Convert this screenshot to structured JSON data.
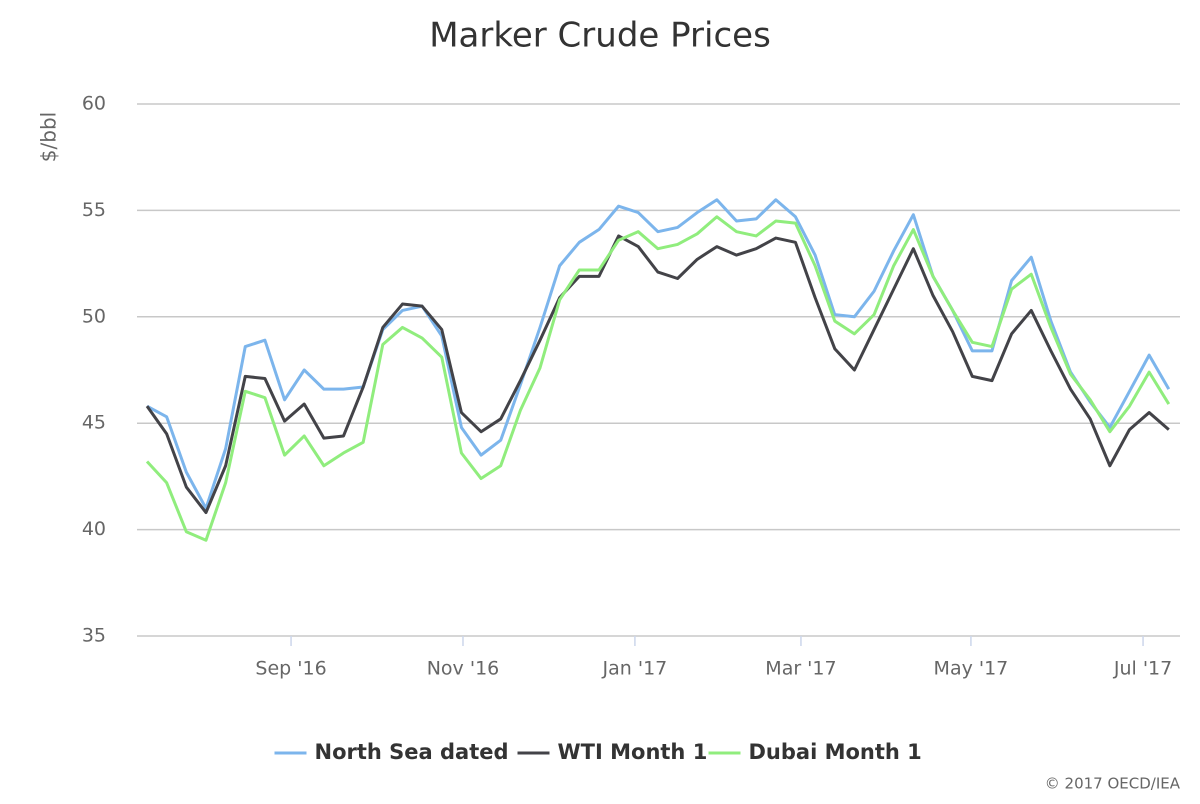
{
  "chart_data": {
    "type": "line",
    "title": "Marker Crude Prices",
    "y_label": "$/bbl",
    "credit": "© 2017 OECD/IEA",
    "legend": "bottom",
    "grid": true,
    "x": [
      0,
      1,
      2,
      3,
      4,
      5,
      6,
      7,
      8,
      9,
      10,
      11,
      12,
      13,
      14,
      15,
      16,
      17,
      18,
      19,
      20,
      21,
      22,
      23,
      24,
      25,
      26,
      27,
      28,
      29,
      30,
      31,
      32,
      33,
      34,
      35,
      36,
      37,
      38,
      39,
      40,
      41,
      42,
      43,
      44,
      45,
      46,
      47,
      48,
      49,
      50,
      51,
      52
    ],
    "xlim": [
      -0.51,
      52.57
    ],
    "xticks": [
      {
        "value": 7.33,
        "label": "Sep '16"
      },
      {
        "value": 16.08,
        "label": "Nov '16"
      },
      {
        "value": 24.83,
        "label": "Jan '17"
      },
      {
        "value": 33.28,
        "label": "Mar '17"
      },
      {
        "value": 41.93,
        "label": "May '17"
      },
      {
        "value": 50.69,
        "label": "Jul '17"
      }
    ],
    "ylim": [
      35,
      60
    ],
    "yticks": [
      35,
      40,
      45,
      50,
      55,
      60
    ],
    "series": [
      {
        "name": "North Sea dated",
        "color": "#7cb5ec",
        "values": [
          45.8,
          45.3,
          42.7,
          41.0,
          43.8,
          48.6,
          48.9,
          46.1,
          47.5,
          46.6,
          46.6,
          46.7,
          49.4,
          50.3,
          50.5,
          49.1,
          44.8,
          43.5,
          44.2,
          46.8,
          49.5,
          52.4,
          53.5,
          54.1,
          55.2,
          54.9,
          54.0,
          54.2,
          54.9,
          55.5,
          54.5,
          54.6,
          55.5,
          54.7,
          52.9,
          50.1,
          50.0,
          51.2,
          53.1,
          54.8,
          51.9,
          50.3,
          48.4,
          48.4,
          51.7,
          52.8,
          49.8,
          47.4,
          46.0,
          44.8,
          46.5,
          48.2,
          46.6
        ]
      },
      {
        "name": "WTI Month 1",
        "color": "#434348",
        "values": [
          45.8,
          44.5,
          42.0,
          40.8,
          43.0,
          47.2,
          47.1,
          45.1,
          45.9,
          44.3,
          44.4,
          46.7,
          49.5,
          50.6,
          50.5,
          49.4,
          45.5,
          44.6,
          45.2,
          47.0,
          48.9,
          50.9,
          51.9,
          51.9,
          53.8,
          53.3,
          52.1,
          51.8,
          52.7,
          53.3,
          52.9,
          53.2,
          53.7,
          53.5,
          50.9,
          48.5,
          47.5,
          49.4,
          51.3,
          53.2,
          51.0,
          49.3,
          47.2,
          47.0,
          49.2,
          50.3,
          48.4,
          46.6,
          45.2,
          43.0,
          44.7,
          45.5,
          44.7
        ]
      },
      {
        "name": "Dubai Month 1",
        "color": "#90ed7d",
        "values": [
          43.2,
          42.2,
          39.9,
          39.5,
          42.2,
          46.5,
          46.2,
          43.5,
          44.4,
          43.0,
          43.6,
          44.1,
          48.7,
          49.5,
          49.0,
          48.1,
          43.6,
          42.4,
          43.0,
          45.6,
          47.6,
          50.8,
          52.2,
          52.2,
          53.6,
          54.0,
          53.2,
          53.4,
          53.9,
          54.7,
          54.0,
          53.8,
          54.5,
          54.4,
          52.4,
          49.8,
          49.2,
          50.1,
          52.4,
          54.1,
          51.9,
          50.3,
          48.8,
          48.6,
          51.3,
          52.0,
          49.5,
          47.3,
          46.1,
          44.6,
          45.8,
          47.4,
          45.9
        ]
      }
    ]
  }
}
